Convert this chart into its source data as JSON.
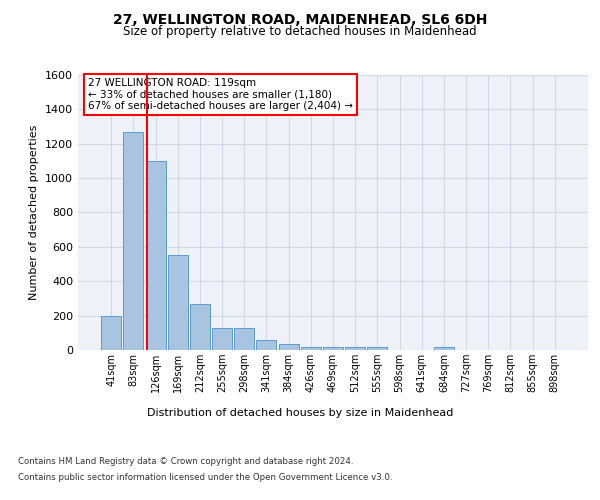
{
  "title": "27, WELLINGTON ROAD, MAIDENHEAD, SL6 6DH",
  "subtitle": "Size of property relative to detached houses in Maidenhead",
  "xlabel": "Distribution of detached houses by size in Maidenhead",
  "ylabel": "Number of detached properties",
  "categories": [
    "41sqm",
    "83sqm",
    "126sqm",
    "169sqm",
    "212sqm",
    "255sqm",
    "298sqm",
    "341sqm",
    "384sqm",
    "426sqm",
    "469sqm",
    "512sqm",
    "555sqm",
    "598sqm",
    "641sqm",
    "684sqm",
    "727sqm",
    "769sqm",
    "812sqm",
    "855sqm",
    "898sqm"
  ],
  "values": [
    200,
    1270,
    1100,
    555,
    270,
    130,
    130,
    60,
    35,
    20,
    15,
    15,
    15,
    0,
    0,
    20,
    0,
    0,
    0,
    0,
    0
  ],
  "bar_color": "#a8c4e0",
  "bar_edge_color": "#5b9bd5",
  "grid_color": "#d0d8e8",
  "background_color": "#eef2f8",
  "ylim": [
    0,
    1600
  ],
  "yticks": [
    0,
    200,
    400,
    600,
    800,
    1000,
    1200,
    1400,
    1600
  ],
  "redline_x": 1.62,
  "annotation_title": "27 WELLINGTON ROAD: 119sqm",
  "annotation_line1": "← 33% of detached houses are smaller (1,180)",
  "annotation_line2": "67% of semi-detached houses are larger (2,404) →",
  "footer_line1": "Contains HM Land Registry data © Crown copyright and database right 2024.",
  "footer_line2": "Contains public sector information licensed under the Open Government Licence v3.0."
}
